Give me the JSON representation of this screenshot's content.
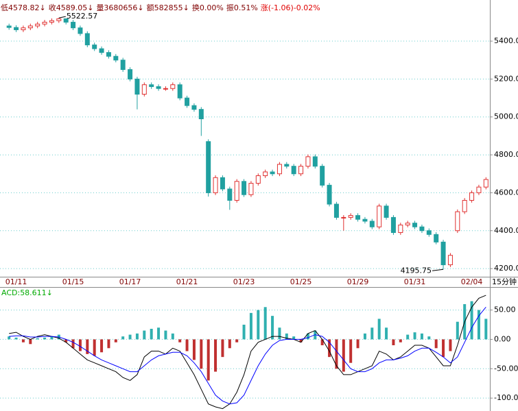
{
  "chart_data": [
    {
      "type": "candlestick",
      "header": [
        "低4578.82↓",
        "收4589.05↓",
        "量3680656↓",
        "额582855↓",
        "换0.00%",
        "振0.51%",
        "涨(-1.06)-0.02%"
      ],
      "annotations": [
        "5522.57",
        "4195.75"
      ],
      "x_unit_label": "15分钟",
      "categories": [
        null,
        "01/11",
        null,
        null,
        null,
        null,
        null,
        null,
        null,
        "01/15",
        null,
        null,
        null,
        null,
        null,
        null,
        null,
        "01/17",
        null,
        null,
        null,
        null,
        null,
        null,
        null,
        "01/21",
        null,
        null,
        null,
        null,
        null,
        null,
        null,
        "01/23",
        null,
        null,
        null,
        null,
        null,
        null,
        null,
        "01/25",
        null,
        null,
        null,
        null,
        null,
        null,
        null,
        "01/29",
        null,
        null,
        null,
        null,
        null,
        null,
        null,
        "01/31",
        null,
        null,
        null,
        null,
        null,
        null,
        null,
        "02/04",
        null,
        null
      ],
      "open": [
        5480,
        5472,
        5460,
        5470,
        5480,
        5490,
        5500,
        5508,
        5518,
        5500,
        5470,
        5440,
        5380,
        5360,
        5340,
        5320,
        5300,
        5250,
        5200,
        5120,
        5170,
        5160,
        5150,
        5150,
        5170,
        5100,
        5060,
        5040,
        4870,
        4600,
        4680,
        4620,
        4560,
        4660,
        4590,
        4650,
        4690,
        4710,
        4700,
        4750,
        4740,
        4700,
        4740,
        4790,
        4740,
        4640,
        4540,
        4470,
        4470,
        4480,
        4460,
        4450,
        4420,
        4530,
        4470,
        4390,
        4430,
        4440,
        4420,
        4400,
        4380,
        4340,
        4220,
        4400,
        4500,
        4560,
        4600,
        4630
      ],
      "high": [
        5492,
        5484,
        5482,
        5492,
        5502,
        5512,
        5520,
        5522.57,
        5520,
        5512,
        5482,
        5452,
        5392,
        5372,
        5352,
        5332,
        5312,
        5262,
        5212,
        5182,
        5182,
        5172,
        5162,
        5182,
        5182,
        5112,
        5072,
        5052,
        4882,
        4692,
        4692,
        4632,
        4672,
        4672,
        4662,
        4702,
        4722,
        4722,
        4762,
        4762,
        4752,
        4752,
        4802,
        4802,
        4752,
        4652,
        4552,
        4482,
        4492,
        4492,
        4472,
        4462,
        4542,
        4542,
        4482,
        4442,
        4452,
        4452,
        4432,
        4412,
        4392,
        4352,
        4282,
        4512,
        4572,
        4612,
        4642,
        4682
      ],
      "low": [
        5460,
        5448,
        5448,
        5458,
        5468,
        5478,
        5488,
        5496,
        5488,
        5458,
        5428,
        5368,
        5348,
        5328,
        5308,
        5288,
        5238,
        5188,
        5040,
        5108,
        5148,
        5138,
        5138,
        5138,
        5088,
        5048,
        5028,
        4900,
        4580,
        4588,
        4608,
        4510,
        4548,
        4578,
        4578,
        4638,
        4678,
        4688,
        4688,
        4728,
        4688,
        4688,
        4728,
        4728,
        4628,
        4528,
        4458,
        4400,
        4458,
        4448,
        4438,
        4408,
        4408,
        4458,
        4378,
        4378,
        4418,
        4408,
        4388,
        4368,
        4328,
        4195.75,
        4208,
        4388,
        4488,
        4548,
        4588,
        4618
      ],
      "close": [
        5472,
        5460,
        5470,
        5480,
        5490,
        5500,
        5508,
        5518,
        5500,
        5470,
        5440,
        5380,
        5360,
        5340,
        5320,
        5300,
        5250,
        5200,
        5120,
        5170,
        5160,
        5150,
        5150,
        5170,
        5100,
        5060,
        5040,
        4990,
        4600,
        4680,
        4620,
        4560,
        4660,
        4590,
        4650,
        4690,
        4710,
        4700,
        4750,
        4740,
        4700,
        4740,
        4790,
        4740,
        4640,
        4540,
        4470,
        4470,
        4480,
        4460,
        4450,
        4420,
        4530,
        4470,
        4390,
        4430,
        4440,
        4420,
        4400,
        4380,
        4340,
        4220,
        4270,
        4500,
        4560,
        4600,
        4630,
        4670
      ],
      "up_color": "#e03030",
      "down_color": "#20a0a0",
      "ylim": [
        4157,
        5617
      ],
      "yticks": [
        {
          "value": 4200,
          "label": "4200.0"
        },
        {
          "value": 4400,
          "label": "4400.0"
        },
        {
          "value": 4600,
          "label": "4600.0"
        },
        {
          "value": 4800,
          "label": "4800.0"
        },
        {
          "value": 5000,
          "label": "5000.0"
        },
        {
          "value": 5200,
          "label": "5200.0"
        },
        {
          "value": 5400,
          "label": "5400.0"
        }
      ],
      "grid": true
    },
    {
      "type": "indicator",
      "title": "ACD:58.611↓",
      "histogram": {
        "values": [
          5,
          3,
          -5,
          -8,
          2,
          3,
          5,
          8,
          -5,
          -15,
          -20,
          -25,
          -28,
          -22,
          -15,
          -5,
          5,
          8,
          10,
          15,
          18,
          20,
          15,
          10,
          -5,
          -20,
          -35,
          -50,
          -70,
          -55,
          -30,
          -15,
          -5,
          25,
          45,
          50,
          55,
          40,
          20,
          10,
          5,
          -5,
          10,
          15,
          -10,
          -30,
          -50,
          -55,
          -40,
          -15,
          10,
          20,
          35,
          20,
          -10,
          -5,
          8,
          12,
          10,
          5,
          -15,
          -30,
          -20,
          30,
          60,
          65,
          50,
          35
        ],
        "up_color": "#30b0b0",
        "down_color": "#c03030"
      },
      "series": [
        {
          "color": "#000000",
          "values": [
            10,
            12,
            5,
            0,
            5,
            8,
            5,
            2,
            -5,
            -15,
            -25,
            -35,
            -40,
            -45,
            -50,
            -55,
            -65,
            -70,
            -60,
            -30,
            -20,
            -20,
            -25,
            -15,
            -20,
            -40,
            -60,
            -85,
            -110,
            -115,
            -118,
            -110,
            -90,
            -60,
            -20,
            -5,
            0,
            5,
            5,
            2,
            0,
            -5,
            10,
            15,
            0,
            -20,
            -45,
            -60,
            -60,
            -55,
            -50,
            -45,
            -20,
            -25,
            -35,
            -30,
            -20,
            -10,
            -10,
            -15,
            -30,
            -45,
            -45,
            -10,
            30,
            55,
            70,
            75
          ]
        },
        {
          "color": "#0000ff",
          "values": [
            5,
            6,
            6,
            4,
            4,
            5,
            5,
            4,
            0,
            -5,
            -12,
            -20,
            -28,
            -35,
            -40,
            -45,
            -50,
            -55,
            -55,
            -45,
            -35,
            -28,
            -25,
            -22,
            -22,
            -28,
            -40,
            -55,
            -75,
            -95,
            -105,
            -110,
            -108,
            -95,
            -70,
            -45,
            -25,
            -10,
            -2,
            0,
            0,
            0,
            3,
            8,
            5,
            -5,
            -20,
            -35,
            -50,
            -55,
            -55,
            -50,
            -40,
            -35,
            -35,
            -32,
            -28,
            -20,
            -15,
            -15,
            -22,
            -30,
            -40,
            -30,
            -5,
            20,
            40,
            55
          ]
        }
      ],
      "ylim": [
        -122,
        88
      ],
      "yticks": [
        {
          "value": 50,
          "label": "50.00"
        },
        {
          "value": 0,
          "label": "0.00"
        },
        {
          "value": -50,
          "label": "-50.00"
        },
        {
          "value": -100,
          "label": "-100.0"
        }
      ],
      "grid": true
    }
  ]
}
